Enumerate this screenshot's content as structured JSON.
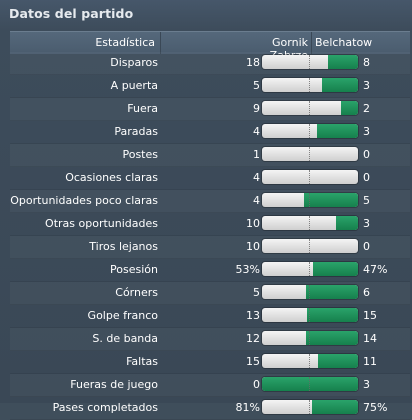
{
  "panel": {
    "title": "Datos del partido",
    "header": {
      "stat": "Estadística",
      "home": "Gornik Zabrze",
      "away": "Belchatow"
    }
  },
  "colors": {
    "home_bar": "#e6e6e6",
    "away_bar": "#1e8f5a",
    "background": "#3d4c5b"
  },
  "stats": [
    {
      "name": "Disparos",
      "home": "18",
      "away": "8",
      "away_share": 0.31
    },
    {
      "name": "A puerta",
      "home": "5",
      "away": "3",
      "away_share": 0.375
    },
    {
      "name": "Fuera",
      "home": "9",
      "away": "2",
      "away_share": 0.18
    },
    {
      "name": "Paradas",
      "home": "4",
      "away": "3",
      "away_share": 0.43
    },
    {
      "name": "Postes",
      "home": "1",
      "away": "0",
      "away_share": 0
    },
    {
      "name": "Ocasiones claras",
      "home": "4",
      "away": "0",
      "away_share": 0
    },
    {
      "name": "Oportunidades poco claras",
      "home": "4",
      "away": "5",
      "away_share": 0.56
    },
    {
      "name": "Otras oportunidades",
      "home": "10",
      "away": "3",
      "away_share": 0.23
    },
    {
      "name": "Tiros lejanos",
      "home": "10",
      "away": "0",
      "away_share": 0
    },
    {
      "name": "Posesión",
      "home": "53%",
      "away": "47%",
      "away_share": 0.47
    },
    {
      "name": "Córners",
      "home": "5",
      "away": "6",
      "away_share": 0.545
    },
    {
      "name": "Golpe franco",
      "home": "13",
      "away": "15",
      "away_share": 0.536
    },
    {
      "name": "S. de banda",
      "home": "12",
      "away": "14",
      "away_share": 0.538
    },
    {
      "name": "Faltas",
      "home": "15",
      "away": "11",
      "away_share": 0.42
    },
    {
      "name": "Fueras de juego",
      "home": "0",
      "away": "3",
      "away_share": 1
    },
    {
      "name": "Pases completados",
      "home": "81%",
      "away": "75%",
      "away_share": 0.48
    }
  ]
}
